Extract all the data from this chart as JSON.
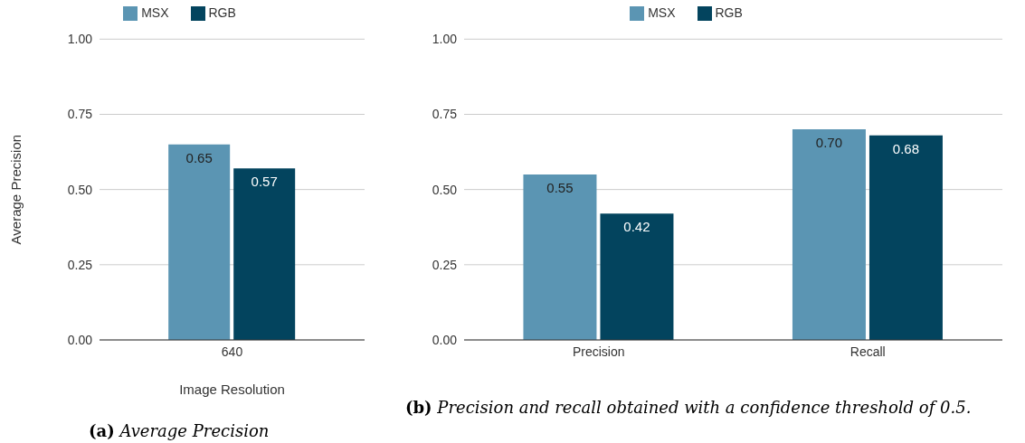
{
  "chart_data": [
    {
      "type": "bar",
      "ylabel": "Average Precision",
      "xlabel": "Image Resolution",
      "categories": [
        "640"
      ],
      "series": [
        {
          "name": "MSX",
          "color": "#5b95b3",
          "values": [
            0.65
          ],
          "value_labels": [
            "0.65"
          ]
        },
        {
          "name": "RGB",
          "color": "#03445e",
          "values": [
            0.57
          ],
          "value_labels": [
            "0.57"
          ]
        }
      ],
      "ylim": [
        0,
        1
      ],
      "yticks": [
        {
          "value": 0,
          "label": "0.00"
        },
        {
          "value": 0.25,
          "label": "0.25"
        },
        {
          "value": 0.5,
          "label": "0.50"
        },
        {
          "value": 0.75,
          "label": "0.75"
        },
        {
          "value": 1,
          "label": "1.00"
        }
      ],
      "grid": "y",
      "legend": "top",
      "annotations": [
        "(a) Average Precision"
      ]
    },
    {
      "type": "bar",
      "categories": [
        "Precision",
        "Recall"
      ],
      "series": [
        {
          "name": "MSX",
          "color": "#5b95b3",
          "values": [
            0.55,
            0.7
          ],
          "value_labels": [
            "0.55",
            "0.70"
          ]
        },
        {
          "name": "RGB",
          "color": "#03445e",
          "values": [
            0.42,
            0.68
          ],
          "value_labels": [
            "0.42",
            "0.68"
          ]
        }
      ],
      "ylim": [
        0,
        1
      ],
      "yticks": [
        {
          "value": 0,
          "label": "0.00"
        },
        {
          "value": 0.25,
          "label": "0.25"
        },
        {
          "value": 0.5,
          "label": "0.50"
        },
        {
          "value": 0.75,
          "label": "0.75"
        },
        {
          "value": 1,
          "label": "1.00"
        }
      ],
      "grid": "y",
      "legend": "top",
      "annotations": [
        "(b) Precision and recall obtained with a confidence threshold of 0.5."
      ]
    }
  ]
}
